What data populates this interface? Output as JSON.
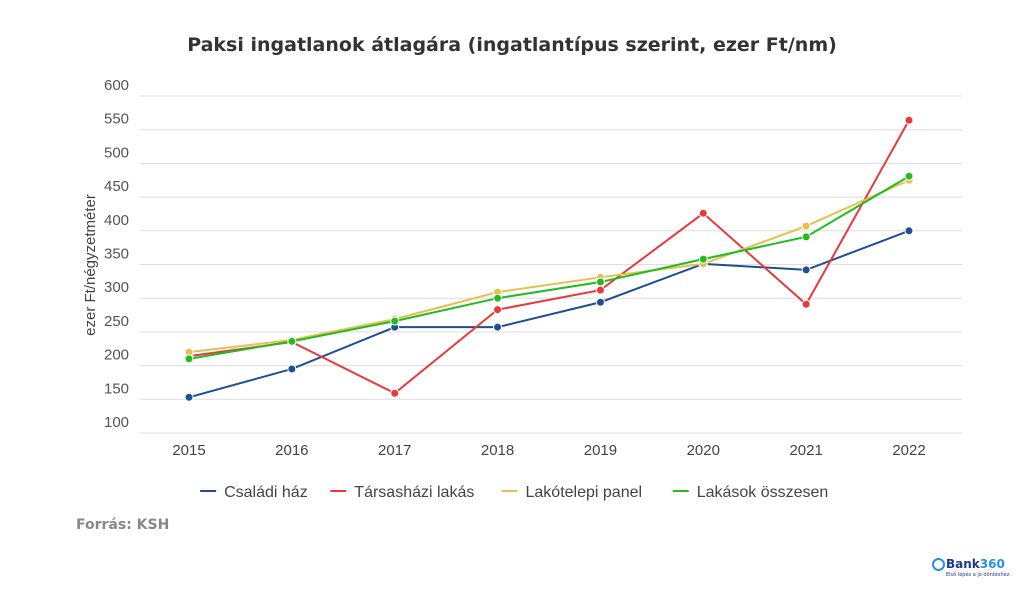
{
  "chart_data": {
    "type": "line",
    "title": "Paksi ingatlanok átlagára (ingatlantípus szerint, ezer Ft/nm)",
    "xlabel": "",
    "ylabel": "ezer Ft/négyzetméter",
    "ylim": [
      100,
      600
    ],
    "yticks": [
      100,
      150,
      200,
      250,
      300,
      350,
      400,
      450,
      500,
      550,
      600
    ],
    "categories": [
      "2015",
      "2016",
      "2017",
      "2018",
      "2019",
      "2020",
      "2021",
      "2022"
    ],
    "grid": true,
    "legend_placement": "bottom",
    "series": [
      {
        "name": "Családi ház",
        "color": "#1f4e95",
        "values": [
          153,
          195,
          257,
          257,
          294,
          351,
          342,
          400
        ]
      },
      {
        "name": "Társasházi lakás",
        "color": "#e8393a",
        "values": [
          214,
          235,
          159,
          283,
          312,
          426,
          291,
          564
        ]
      },
      {
        "name": "Lakótelepi panel",
        "color": "#e5bf4f",
        "values": [
          220,
          238,
          269,
          309,
          331,
          351,
          407,
          475
        ]
      },
      {
        "name": "Lakások összesen",
        "color": "#22bb22",
        "values": [
          210,
          236,
          266,
          300,
          324,
          358,
          391,
          481
        ]
      }
    ]
  },
  "source": "Forrás: KSH",
  "logo": {
    "name_a": "Bank",
    "name_b": "360",
    "tagline": "Első lépés a jó döntéshez."
  }
}
